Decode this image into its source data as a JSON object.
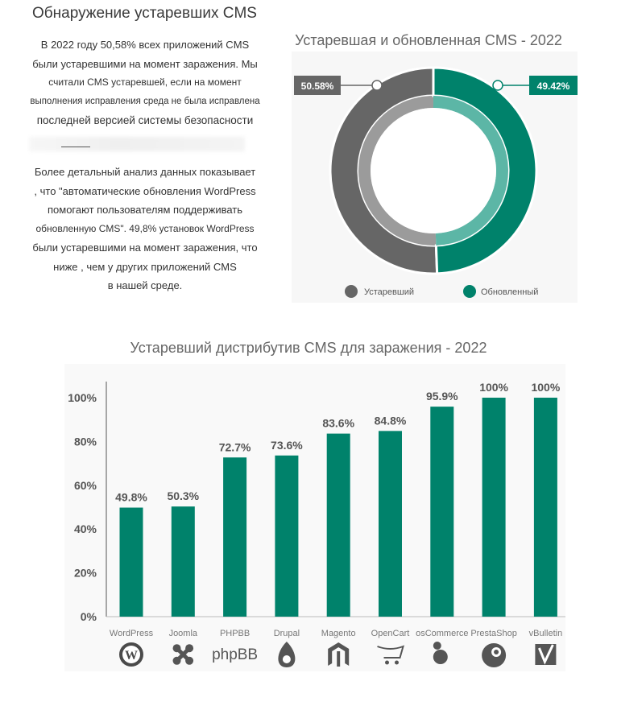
{
  "heading": "Обнаружение устаревших CMS",
  "paragraph1": [
    "В 2022 году 50,58% всех приложений CMS",
    "были устаревшими на момент заражения. Мы",
    "считали CMS устаревшей, если на момент",
    "выполнения исправления среда не была исправлена",
    "последней версией системы безопасности"
  ],
  "paragraph2": [
    "Более детальный анализ данных показывает",
    ", что \"автоматические обновления WordPress",
    "помогают пользователям поддерживать",
    "обновленную CMS\". 49,8% установок WordPress",
    "были устаревшими на момент заражения, что",
    "ниже , чем у других приложений CMS",
    "в нашей среде."
  ],
  "colors": {
    "outdated": "#666666",
    "updated": "#00826b",
    "bar": "#00826b",
    "inner_ring_outdated": "#9b9b9b",
    "inner_ring_updated": "#5cb6a6"
  },
  "chart_data": [
    {
      "type": "pie",
      "title": "Устаревшая и обновленная CMS - 2022",
      "categories": [
        "Устаревший",
        "Обновленный"
      ],
      "values": [
        50.58,
        49.42
      ],
      "value_labels": [
        "50.58%",
        "49.42%"
      ],
      "legend": "bottom"
    },
    {
      "type": "bar",
      "title": "Устаревший дистрибутив CMS для заражения - 2022",
      "categories": [
        "WordPress",
        "Joomla",
        "PHPBB",
        "Drupal",
        "Magento",
        "OpenCart",
        "osCommerce",
        "PrestaShop",
        "vBulletin"
      ],
      "values": [
        49.8,
        50.3,
        72.7,
        73.6,
        83.6,
        84.8,
        95.9,
        100,
        100
      ],
      "value_labels": [
        "49.8%",
        "50.3%",
        "72.7%",
        "73.6%",
        "83.6%",
        "84.8%",
        "95.9%",
        "100%",
        "100%"
      ],
      "ylim": [
        0,
        100
      ],
      "yticks": [
        "0%",
        "20%",
        "40%",
        "60%",
        "80%",
        "100%"
      ],
      "grid": false,
      "logos": [
        "wordpress-logo",
        "joomla-logo",
        "phpbb-logo",
        "drupal-logo",
        "magento-logo",
        "opencart-logo",
        "oscommerce-logo",
        "prestashop-logo",
        "vbulletin-logo"
      ],
      "logo_text": {
        "phpbb": "phpBB"
      }
    }
  ]
}
